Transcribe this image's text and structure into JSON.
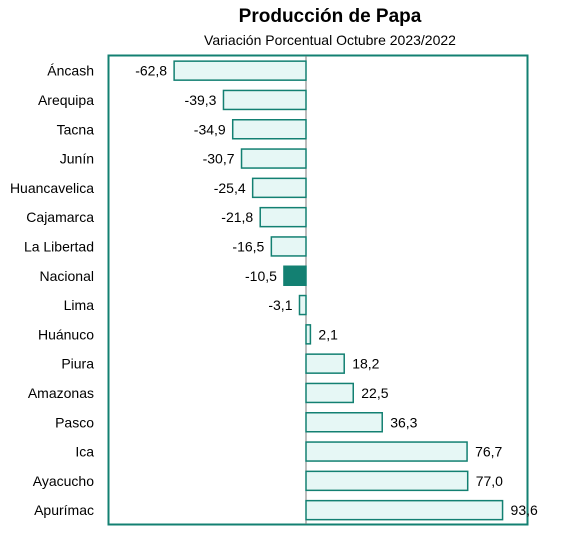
{
  "chart_data": {
    "type": "bar",
    "orientation": "horizontal",
    "title": "Producción de Papa",
    "subtitle": "Variación Porcentual Octubre 2023/2022",
    "xlim": [
      -75,
      100
    ],
    "grid": false,
    "categories": [
      "Áncash",
      "Arequipa",
      "Tacna",
      "Junín",
      "Huancavelica",
      "Cajamarca",
      "La Libertad",
      "Nacional",
      "Lima",
      "Huánuco",
      "Piura",
      "Amazonas",
      "Pasco",
      "Ica",
      "Ayacucho",
      "Apurímac"
    ],
    "values": [
      -62.8,
      -39.3,
      -34.9,
      -30.7,
      -25.4,
      -21.8,
      -16.5,
      -10.5,
      -3.1,
      2.1,
      18.2,
      22.5,
      36.3,
      76.7,
      77.0,
      93.6
    ],
    "value_labels": [
      "-62,8",
      "-39,3",
      "-34,9",
      "-30,7",
      "-25,4",
      "-21,8",
      "-16,5",
      "-10,5",
      "-3,1",
      "2,1",
      "18,2",
      "22,5",
      "36,3",
      "76,7",
      "77,0",
      "93,6"
    ],
    "highlight": "Nacional",
    "colors": {
      "bar_fill": "#e6f7f5",
      "bar_stroke": "#138072",
      "highlight_fill": "#138072",
      "frame": "#138072"
    }
  }
}
